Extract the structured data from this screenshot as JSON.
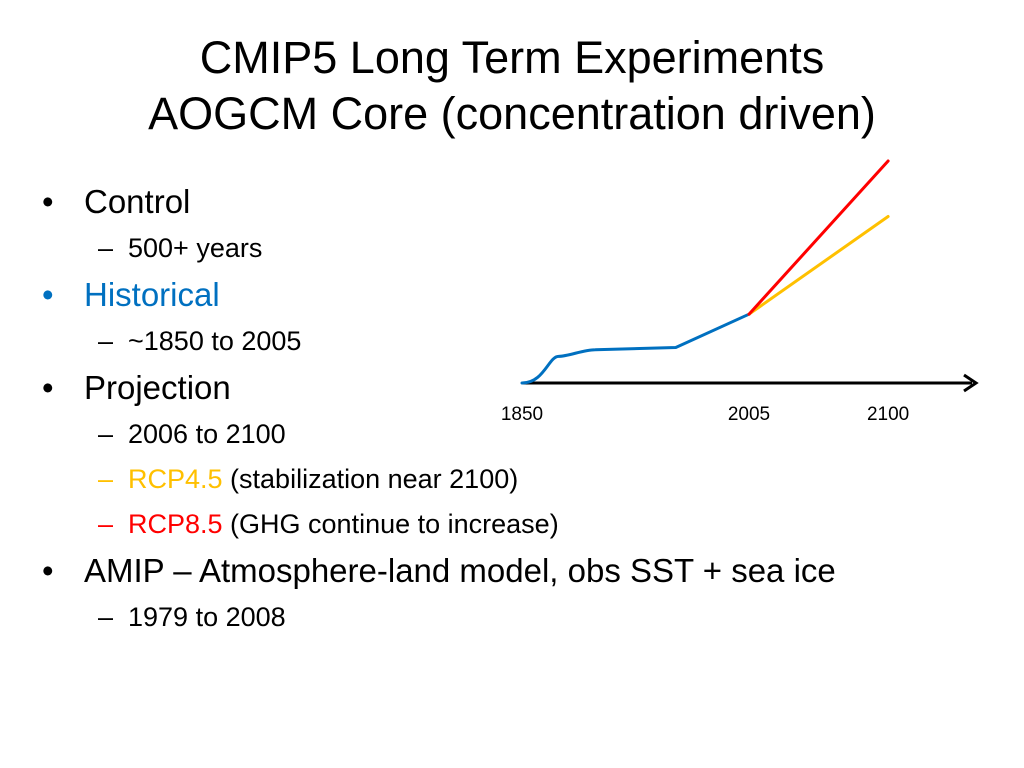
{
  "title": {
    "line1": "CMIP5 Long Term Experiments",
    "line2": "AOGCM Core (concentration driven)"
  },
  "colors": {
    "text": "#000000",
    "historical": "#0070C0",
    "rcp45": "#FFC000",
    "rcp85": "#FF0000",
    "axis": "#000000"
  },
  "bullets": [
    {
      "marker": "•",
      "text": "Control",
      "color": "#000000",
      "sub": [
        {
          "marker": "–",
          "marker_color": "#000000",
          "parts": [
            {
              "text": "500+ years",
              "color": "#000000"
            }
          ]
        }
      ]
    },
    {
      "marker": "•",
      "text": "Historical",
      "color": "#0070C0",
      "sub": [
        {
          "marker": "–",
          "marker_color": "#000000",
          "parts": [
            {
              "text": "~1850 to 2005",
              "color": "#000000"
            }
          ]
        }
      ]
    },
    {
      "marker": "•",
      "text": "Projection",
      "color": "#000000",
      "sub": [
        {
          "marker": "–",
          "marker_color": "#000000",
          "parts": [
            {
              "text": "2006 to 2100",
              "color": "#000000"
            }
          ]
        },
        {
          "marker": "–",
          "marker_color": "#FFC000",
          "parts": [
            {
              "text": "RCP4.5",
              "color": "#FFC000"
            },
            {
              "text": " (stabilization near 2100)",
              "color": "#000000"
            }
          ]
        },
        {
          "marker": "–",
          "marker_color": "#FF0000",
          "parts": [
            {
              "text": "RCP8.5",
              "color": "#FF0000"
            },
            {
              "text": " (GHG continue to increase)",
              "color": "#000000"
            }
          ]
        }
      ]
    },
    {
      "marker": "•",
      "text": "AMIP – Atmosphere-land model, obs SST + sea ice",
      "color": "#000000",
      "sub": [
        {
          "marker": "–",
          "marker_color": "#000000",
          "parts": [
            {
              "text": "1979 to 2008",
              "color": "#000000"
            }
          ]
        }
      ]
    }
  ],
  "chart_data": {
    "type": "line",
    "title": "",
    "xlabel": "",
    "ylabel": "",
    "x_tick_labels": [
      "1850",
      "2005",
      "2100"
    ],
    "x_ticks": [
      1850,
      2005,
      2100
    ],
    "xlim": [
      1850,
      2160
    ],
    "ylim": [
      0,
      1
    ],
    "axis_arrow": true,
    "grid": false,
    "series": [
      {
        "color": "#0070C0",
        "shape": "smooth-rise-then-plateau-then-linear",
        "x": [
          1850,
          1875,
          1900,
          1955,
          2005
        ],
        "y": [
          0.0,
          0.12,
          0.15,
          0.16,
          0.31
        ]
      },
      {
        "color": "#FFC000",
        "shape": "linear",
        "x": [
          2005,
          2100
        ],
        "y": [
          0.31,
          0.75
        ]
      },
      {
        "color": "#FF0000",
        "shape": "linear",
        "x": [
          2005,
          2100
        ],
        "y": [
          0.31,
          1.0
        ]
      }
    ]
  }
}
